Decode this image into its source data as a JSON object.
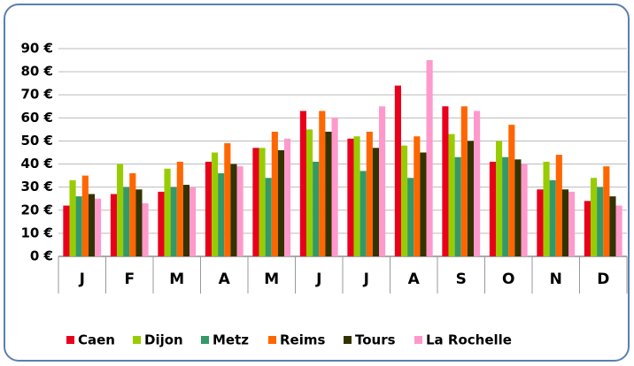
{
  "chart_data": {
    "type": "bar",
    "categories": [
      "J",
      "F",
      "M",
      "A",
      "M",
      "J",
      "J",
      "A",
      "S",
      "O",
      "N",
      "D"
    ],
    "series": [
      {
        "name": "Caen",
        "color": "#e8001c",
        "values": [
          22,
          27,
          28,
          41,
          47,
          63,
          51,
          74,
          65,
          41,
          29,
          24
        ]
      },
      {
        "name": "Dijon",
        "color": "#99cc00",
        "values": [
          33,
          40,
          38,
          45,
          47,
          55,
          52,
          48,
          53,
          50,
          41,
          34
        ]
      },
      {
        "name": "Metz",
        "color": "#339966",
        "values": [
          26,
          30,
          30,
          36,
          34,
          41,
          37,
          34,
          43,
          43,
          33,
          30
        ]
      },
      {
        "name": "Reims",
        "color": "#ff6600",
        "values": [
          35,
          36,
          41,
          49,
          54,
          63,
          54,
          52,
          65,
          57,
          44,
          39
        ]
      },
      {
        "name": "Tours",
        "color": "#333300",
        "values": [
          27,
          29,
          31,
          40,
          46,
          54,
          47,
          45,
          50,
          42,
          29,
          26
        ]
      },
      {
        "name": "La Rochelle",
        "color": "#ff99cc",
        "values": [
          25,
          23,
          30,
          39,
          51,
          60,
          65,
          85,
          63,
          40,
          28,
          22
        ]
      }
    ],
    "ylim": [
      0,
      90
    ],
    "yticks": [
      {
        "value": 0,
        "label": "0 €"
      },
      {
        "value": 10,
        "label": "10 €"
      },
      {
        "value": 20,
        "label": "20 €"
      },
      {
        "value": 30,
        "label": "30 €"
      },
      {
        "value": 40,
        "label": "40 €"
      },
      {
        "value": 50,
        "label": "50 €"
      },
      {
        "value": 60,
        "label": "60 €"
      },
      {
        "value": 70,
        "label": "70 €"
      },
      {
        "value": 80,
        "label": "80 €"
      },
      {
        "value": 90,
        "label": "90 €"
      }
    ],
    "grid": true,
    "legend": "bottom"
  }
}
